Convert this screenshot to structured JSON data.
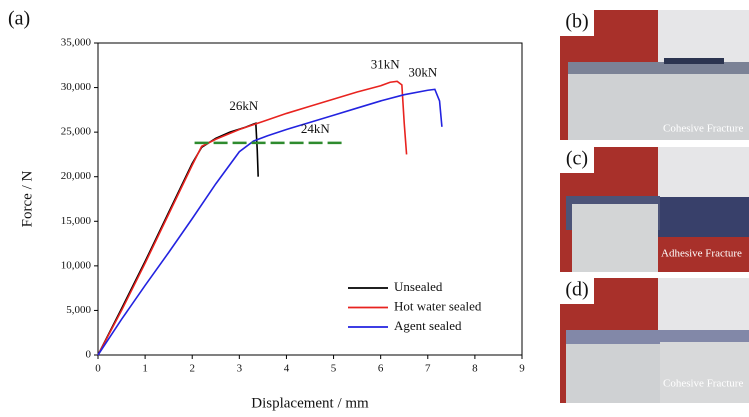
{
  "figure_label": "(a)",
  "panels": [
    {
      "label": "(b)",
      "caption": "Cohesive Fracture"
    },
    {
      "label": "(c)",
      "caption": "Adhesive Fracture"
    },
    {
      "label": "(d)",
      "caption": "Cohesive Fracture"
    }
  ],
  "chart_data": {
    "type": "line",
    "xlabel": "Displacement / mm",
    "ylabel": "Force / N",
    "xlim": [
      0,
      9
    ],
    "xticks": [
      0,
      1,
      2,
      3,
      4,
      5,
      6,
      7,
      8,
      9
    ],
    "ylim": [
      0,
      35000
    ],
    "yticks": [
      0,
      {
        "value": 5000,
        "label": "5,000"
      },
      {
        "value": 10000,
        "label": "10,000"
      },
      {
        "value": 15000,
        "label": "15,000"
      },
      {
        "value": 20000,
        "label": "20,000"
      },
      {
        "value": 25000,
        "label": "25,000"
      },
      {
        "value": 30000,
        "label": "30,000"
      },
      {
        "value": 35000,
        "label": "35,000"
      }
    ],
    "legend": "lower right",
    "series": [
      {
        "name": "Unsealed",
        "color": "#000000",
        "x": [
          0,
          0.5,
          1,
          1.5,
          2,
          2.2,
          2.5,
          2.8,
          3.1,
          3.35,
          3.38,
          3.4
        ],
        "values": [
          0,
          5200,
          10500,
          16000,
          21500,
          23300,
          24300,
          25000,
          25500,
          26000,
          23000,
          20000
        ]
      },
      {
        "name": "Hot water sealed",
        "color": "#e8231f",
        "x": [
          0,
          0.5,
          1,
          1.5,
          2,
          2.2,
          2.5,
          3,
          3.5,
          4,
          4.5,
          5,
          5.5,
          6,
          6.2,
          6.35,
          6.45,
          6.5,
          6.55
        ],
        "values": [
          0,
          5000,
          10300,
          15800,
          21300,
          23400,
          24200,
          25300,
          26200,
          27100,
          27900,
          28700,
          29500,
          30200,
          30600,
          30700,
          30300,
          26000,
          22500
        ]
      },
      {
        "name": "Agent sealed",
        "color": "#2323e0",
        "x": [
          0,
          0.5,
          1,
          1.5,
          2,
          2.5,
          3,
          3.3,
          3.6,
          4,
          4.5,
          5,
          5.5,
          6,
          6.5,
          7,
          7.15,
          7.25,
          7.3
        ],
        "values": [
          0,
          4000,
          7800,
          11500,
          15300,
          19200,
          22800,
          24000,
          24600,
          25300,
          26100,
          26900,
          27700,
          28500,
          29200,
          29700,
          29800,
          28500,
          25600
        ]
      }
    ],
    "annotations": [
      {
        "text": "26kN",
        "x": 3.35,
        "y": 26000
      },
      {
        "text": "31kN",
        "x": 6.35,
        "y": 30700
      },
      {
        "text": "30kN",
        "x": 7.15,
        "y": 29800
      }
    ],
    "reference_line": {
      "label": "24kN",
      "value": 23800,
      "x": [
        2.05,
        5.25
      ],
      "color": "#2e8b2e"
    }
  }
}
